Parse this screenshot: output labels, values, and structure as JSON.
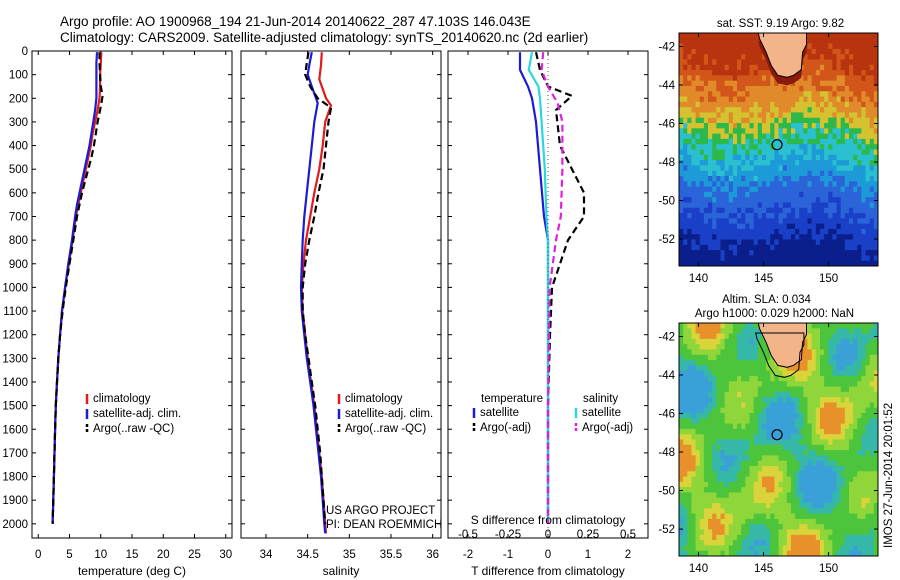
{
  "title": {
    "line1": "Argo profile: AO 1900968_194 21-Jun-2014 20140622_287 47.103S 146.043E",
    "line2": "Climatology: CARS2009. Satellite-adjusted climatology: synTS_20140620.nc (2d earlier)"
  },
  "credit": {
    "line1": "US ARGO PROJECT",
    "line2": "PI: DEAN ROEMMICH"
  },
  "vertical_stamp": "IMOS 27-Jun-2014 20:01:52",
  "colors": {
    "climatology": "#e31a1c",
    "satellite": "#1c1cd6",
    "argo": "#000000",
    "satellite_salinity": "#2ad7dc",
    "argo_salinity": "#e020e0",
    "land": "#f4b48a",
    "float_marker": "#000000"
  },
  "chart_data": [
    {
      "id": "temperature",
      "type": "line",
      "xlabel": "temperature (deg C)",
      "xlim": [
        -1,
        31
      ],
      "xticks": [
        0,
        5,
        10,
        15,
        20,
        25,
        30
      ],
      "ylim": [
        2060,
        0
      ],
      "yticks": [
        0,
        100,
        200,
        300,
        400,
        500,
        600,
        700,
        800,
        900,
        1000,
        1100,
        1200,
        1300,
        1400,
        1500,
        1600,
        1700,
        1800,
        1900,
        2000
      ],
      "legend": [
        "climatology",
        "satellite-adj. clim.",
        "Argo(..raw -QC)"
      ],
      "series": [
        {
          "name": "climatology",
          "color": "#e31a1c",
          "dash": "",
          "points": [
            [
              10.1,
              5
            ],
            [
              10.0,
              50
            ],
            [
              9.9,
              100
            ],
            [
              9.9,
              150
            ],
            [
              9.8,
              200
            ],
            [
              9.5,
              250
            ],
            [
              9.1,
              300
            ],
            [
              8.7,
              350
            ],
            [
              8.4,
              400
            ],
            [
              8.0,
              450
            ],
            [
              7.6,
              500
            ],
            [
              7.2,
              550
            ],
            [
              6.8,
              600
            ],
            [
              6.4,
              650
            ],
            [
              6.0,
              700
            ],
            [
              5.5,
              800
            ],
            [
              4.9,
              900
            ],
            [
              4.3,
              1000
            ],
            [
              3.8,
              1100
            ],
            [
              3.5,
              1200
            ],
            [
              3.2,
              1300
            ],
            [
              3.0,
              1400
            ],
            [
              2.8,
              1500
            ],
            [
              2.7,
              1600
            ],
            [
              2.6,
              1700
            ],
            [
              2.5,
              1800
            ],
            [
              2.4,
              1900
            ],
            [
              2.3,
              2000
            ]
          ]
        },
        {
          "name": "satellite-adj. clim.",
          "color": "#1c1cd6",
          "dash": "",
          "points": [
            [
              9.4,
              5
            ],
            [
              9.3,
              50
            ],
            [
              9.3,
              100
            ],
            [
              9.3,
              150
            ],
            [
              9.3,
              200
            ],
            [
              9.1,
              250
            ],
            [
              8.8,
              300
            ],
            [
              8.5,
              350
            ],
            [
              8.2,
              400
            ],
            [
              7.8,
              450
            ],
            [
              7.4,
              500
            ],
            [
              7.0,
              550
            ],
            [
              6.6,
              600
            ],
            [
              6.2,
              650
            ],
            [
              5.9,
              700
            ],
            [
              5.4,
              800
            ],
            [
              4.8,
              900
            ],
            [
              4.3,
              1000
            ],
            [
              3.8,
              1100
            ],
            [
              3.5,
              1200
            ],
            [
              3.2,
              1300
            ],
            [
              3.0,
              1400
            ],
            [
              2.8,
              1500
            ],
            [
              2.7,
              1600
            ],
            [
              2.6,
              1700
            ],
            [
              2.5,
              1800
            ],
            [
              2.4,
              1900
            ],
            [
              2.3,
              2000
            ]
          ]
        },
        {
          "name": "Argo(..raw -QC)",
          "color": "#000000",
          "dash": "7 4",
          "points": [
            [
              9.8,
              5
            ],
            [
              9.8,
              50
            ],
            [
              9.9,
              100
            ],
            [
              10.0,
              150
            ],
            [
              10.3,
              190
            ],
            [
              9.9,
              250
            ],
            [
              9.5,
              300
            ],
            [
              9.2,
              350
            ],
            [
              8.9,
              400
            ],
            [
              8.5,
              450
            ],
            [
              8.0,
              500
            ],
            [
              7.5,
              550
            ],
            [
              7.0,
              600
            ],
            [
              6.6,
              650
            ],
            [
              6.2,
              700
            ],
            [
              5.6,
              800
            ],
            [
              5.0,
              900
            ],
            [
              4.4,
              1000
            ],
            [
              3.9,
              1100
            ],
            [
              3.5,
              1200
            ],
            [
              3.2,
              1300
            ],
            [
              3.0,
              1400
            ],
            [
              2.8,
              1500
            ],
            [
              2.7,
              1600
            ],
            [
              2.6,
              1700
            ],
            [
              2.5,
              1800
            ],
            [
              2.4,
              1900
            ],
            [
              2.3,
              2000
            ]
          ]
        }
      ]
    },
    {
      "id": "salinity",
      "type": "line",
      "xlabel": "salinity",
      "xlim": [
        33.7,
        36.1
      ],
      "xticks": [
        34,
        34.5,
        35,
        35.5,
        36
      ],
      "ylim": [
        2060,
        0
      ],
      "legend": [
        "climatology",
        "satellite-adj. clim.",
        "Argo(..raw -QC)"
      ],
      "series": [
        {
          "name": "climatology",
          "color": "#e31a1c",
          "dash": "",
          "points": [
            [
              34.67,
              5
            ],
            [
              34.66,
              60
            ],
            [
              34.64,
              120
            ],
            [
              34.72,
              200
            ],
            [
              34.78,
              230
            ],
            [
              34.71,
              300
            ],
            [
              34.68,
              400
            ],
            [
              34.64,
              500
            ],
            [
              34.58,
              600
            ],
            [
              34.53,
              700
            ],
            [
              34.48,
              800
            ],
            [
              34.45,
              900
            ],
            [
              34.43,
              1000
            ],
            [
              34.44,
              1100
            ],
            [
              34.47,
              1200
            ],
            [
              34.5,
              1300
            ],
            [
              34.54,
              1400
            ],
            [
              34.58,
              1500
            ],
            [
              34.61,
              1600
            ],
            [
              34.64,
              1700
            ],
            [
              34.67,
              1800
            ],
            [
              34.69,
              1900
            ],
            [
              34.71,
              2000
            ],
            [
              34.72,
              2040
            ]
          ]
        },
        {
          "name": "satellite-adj. clim.",
          "color": "#1c1cd6",
          "dash": "",
          "points": [
            [
              34.55,
              5
            ],
            [
              34.52,
              60
            ],
            [
              34.5,
              100
            ],
            [
              34.55,
              150
            ],
            [
              34.6,
              200
            ],
            [
              34.62,
              220
            ],
            [
              34.58,
              300
            ],
            [
              34.55,
              400
            ],
            [
              34.52,
              500
            ],
            [
              34.49,
              600
            ],
            [
              34.46,
              700
            ],
            [
              34.44,
              800
            ],
            [
              34.43,
              900
            ],
            [
              34.42,
              1000
            ],
            [
              34.43,
              1100
            ],
            [
              34.46,
              1200
            ],
            [
              34.49,
              1300
            ],
            [
              34.53,
              1400
            ],
            [
              34.57,
              1500
            ],
            [
              34.6,
              1600
            ],
            [
              34.63,
              1700
            ],
            [
              34.66,
              1800
            ],
            [
              34.68,
              1900
            ],
            [
              34.7,
              2000
            ],
            [
              34.71,
              2040
            ]
          ]
        },
        {
          "name": "Argo(..raw -QC)",
          "color": "#000000",
          "dash": "7 4",
          "points": [
            [
              34.51,
              5
            ],
            [
              34.49,
              50
            ],
            [
              34.47,
              100
            ],
            [
              34.53,
              150
            ],
            [
              34.62,
              200
            ],
            [
              34.78,
              240
            ],
            [
              34.75,
              300
            ],
            [
              34.72,
              400
            ],
            [
              34.69,
              500
            ],
            [
              34.63,
              600
            ],
            [
              34.58,
              700
            ],
            [
              34.52,
              800
            ],
            [
              34.47,
              900
            ],
            [
              34.44,
              1000
            ],
            [
              34.44,
              1100
            ],
            [
              34.47,
              1200
            ],
            [
              34.51,
              1300
            ],
            [
              34.55,
              1400
            ],
            [
              34.59,
              1500
            ],
            [
              34.62,
              1600
            ],
            [
              34.65,
              1700
            ],
            [
              34.67,
              1800
            ],
            [
              34.69,
              1900
            ],
            [
              34.71,
              2000
            ]
          ]
        }
      ]
    },
    {
      "id": "difference",
      "type": "line",
      "xlabel": "T difference from climatology",
      "xlabel_top": "S difference from climatology",
      "xlim": [
        -2.5,
        2.5
      ],
      "xticks": [
        -2,
        -1,
        0,
        1,
        2
      ],
      "x2ticks": [
        -0.5,
        -0.25,
        0,
        0.25,
        0.5
      ],
      "x2labels": [
        "-0.5",
        "-0.25",
        "0",
        "0.25",
        "0.5"
      ],
      "ylim": [
        2060,
        0
      ],
      "legend_left_title": "temperature",
      "legend_right_title": "salinity",
      "legend": [
        "satellite",
        "Argo(-adj)",
        "satellite",
        "Argo(-adj)"
      ],
      "series": [
        {
          "name": "satellite",
          "color": "#1c1cd6",
          "dash": "",
          "points": [
            [
              -0.7,
              5
            ],
            [
              -0.7,
              80
            ],
            [
              -0.5,
              150
            ],
            [
              -0.4,
              200
            ],
            [
              -0.3,
              300
            ],
            [
              -0.2,
              500
            ],
            [
              -0.1,
              700
            ],
            [
              0.0,
              800
            ],
            [
              0.0,
              1000
            ],
            [
              0.0,
              1500
            ],
            [
              0.0,
              2000
            ]
          ]
        },
        {
          "name": "Argo(-adj)",
          "color": "#000000",
          "dash": "7 4",
          "points": [
            [
              -0.3,
              5
            ],
            [
              -0.2,
              80
            ],
            [
              0.0,
              150
            ],
            [
              0.6,
              190
            ],
            [
              0.2,
              250
            ],
            [
              0.3,
              400
            ],
            [
              0.6,
              500
            ],
            [
              0.9,
              600
            ],
            [
              0.9,
              700
            ],
            [
              0.5,
              800
            ],
            [
              0.3,
              900
            ],
            [
              0.1,
              1000
            ],
            [
              0.05,
              1200
            ],
            [
              0.0,
              1500
            ],
            [
              0.0,
              2000
            ]
          ]
        },
        {
          "name": "satellite",
          "color": "#2ad7dc",
          "dash": "",
          "points": [
            [
              -0.1,
              5
            ],
            [
              -0.12,
              80
            ],
            [
              -0.06,
              150
            ],
            [
              -0.05,
              200
            ],
            [
              -0.04,
              300
            ],
            [
              -0.02,
              500
            ],
            [
              -0.01,
              700
            ],
            [
              0.0,
              800
            ],
            [
              0.0,
              1000
            ],
            [
              0.0,
              1500
            ],
            [
              0.0,
              2000
            ]
          ]
        },
        {
          "name": "Argo(-adj)",
          "color": "#e020e0",
          "dash": "7 4",
          "points": [
            [
              -0.03,
              5
            ],
            [
              -0.04,
              80
            ],
            [
              0.0,
              150
            ],
            [
              0.06,
              220
            ],
            [
              0.09,
              300
            ],
            [
              0.09,
              500
            ],
            [
              0.08,
              700
            ],
            [
              0.05,
              800
            ],
            [
              0.03,
              900
            ],
            [
              0.01,
              1000
            ],
            [
              0.0,
              1500
            ],
            [
              0.0,
              2000
            ]
          ]
        }
      ]
    },
    {
      "id": "sst_map",
      "type": "heatmap",
      "title": "sat. SST: 9.19 Argo: 9.82",
      "xlim": [
        138.5,
        153.8
      ],
      "ylim": [
        -53.4,
        -41.3
      ],
      "xticks": [
        140,
        145,
        150
      ],
      "yticks": [
        -42,
        -44,
        -46,
        -48,
        -50,
        -52
      ],
      "float": [
        146.04,
        -47.1
      ]
    },
    {
      "id": "sla_map",
      "type": "heatmap",
      "title": "Altim. SLA: 0.034",
      "subtitle": "Argo h1000: 0.029 h2000: NaN",
      "xlim": [
        138.5,
        153.8
      ],
      "ylim": [
        -53.4,
        -41.3
      ],
      "xticks": [
        140,
        145,
        150
      ],
      "yticks": [
        -42,
        -44,
        -46,
        -48,
        -50,
        -52
      ],
      "float": [
        146.04,
        -47.1
      ]
    }
  ]
}
